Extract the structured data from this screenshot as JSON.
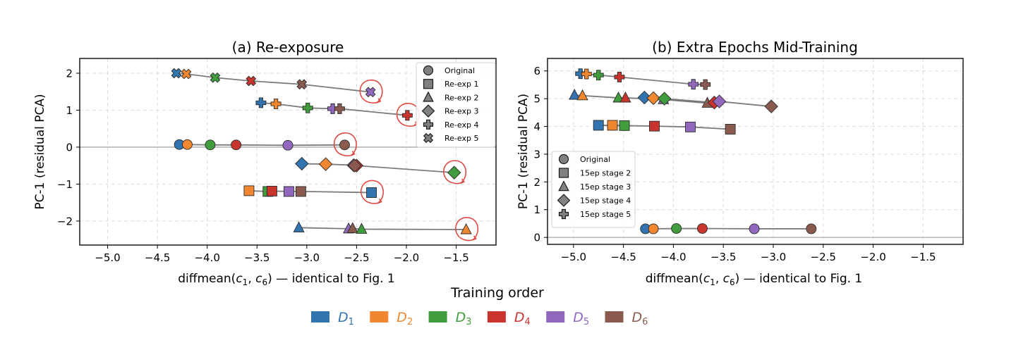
{
  "chart_data": [
    {
      "type": "scatter",
      "title": "(a) Re-exposure",
      "xlabel": "diffmean(c1, c6) — identical to Fig. 1",
      "xlabel_parts": {
        "pre": "diffmean(",
        "c": "c",
        "s1": "1",
        "mid": ", ",
        "s2": "6",
        "post": ") — identical to Fig. 1"
      },
      "ylabel": "PC-1 (residual PCA)",
      "xlim": [
        -5.28,
        -1.1
      ],
      "ylim": [
        -2.65,
        2.4
      ],
      "xticks": [
        -5.0,
        -4.5,
        -4.0,
        -3.5,
        -3.0,
        -2.5,
        -2.0,
        -1.5
      ],
      "xtick_labels": [
        "−5.0",
        "−4.5",
        "−4.0",
        "−3.5",
        "−3.0",
        "−2.5",
        "−2.0",
        "−1.5"
      ],
      "yticks": [
        -2,
        -1,
        0,
        1,
        2
      ],
      "ytick_labels": [
        "−2",
        "−1",
        "0",
        "1",
        "2"
      ],
      "grid": true,
      "zero_line": true,
      "legend_placement": "top-right",
      "legend": [
        {
          "marker": "circle",
          "label": "Original"
        },
        {
          "marker": "square",
          "label": "Re-exp 1"
        },
        {
          "marker": "triangle",
          "label": "Re-exp 2"
        },
        {
          "marker": "diamond",
          "label": "Re-exp 3"
        },
        {
          "marker": "plus",
          "label": "Re-exp 4"
        },
        {
          "marker": "x",
          "label": "Re-exp 5"
        }
      ],
      "series": [
        {
          "name": "Original",
          "marker": "circle",
          "points": [
            {
              "d": "D1",
              "x": -4.28,
              "y": 0.07
            },
            {
              "d": "D2",
              "x": -4.2,
              "y": 0.07
            },
            {
              "d": "D3",
              "x": -3.97,
              "y": 0.06
            },
            {
              "d": "D4",
              "x": -3.71,
              "y": 0.06
            },
            {
              "d": "D5",
              "x": -3.19,
              "y": 0.05
            },
            {
              "d": "D6",
              "x": -2.62,
              "y": 0.06
            }
          ],
          "highlighted": "D6"
        },
        {
          "name": "Re-exp 1",
          "marker": "square",
          "points": [
            {
              "d": "D2",
              "x": -3.58,
              "y": -1.18
            },
            {
              "d": "D3",
              "x": -3.39,
              "y": -1.2
            },
            {
              "d": "D4",
              "x": -3.35,
              "y": -1.19
            },
            {
              "d": "D5",
              "x": -3.18,
              "y": -1.2
            },
            {
              "d": "D6",
              "x": -3.06,
              "y": -1.2
            },
            {
              "d": "D1",
              "x": -2.35,
              "y": -1.23
            }
          ],
          "highlighted": "D1"
        },
        {
          "name": "Re-exp 2",
          "marker": "triangle",
          "points": [
            {
              "d": "D1",
              "x": -3.08,
              "y": -2.18
            },
            {
              "d": "D5",
              "x": -2.58,
              "y": -2.21
            },
            {
              "d": "D6",
              "x": -2.54,
              "y": -2.2
            },
            {
              "d": "D3",
              "x": -2.45,
              "y": -2.22
            },
            {
              "d": "D2",
              "x": -1.4,
              "y": -2.23
            }
          ],
          "highlighted": "D2"
        },
        {
          "name": "Re-exp 3",
          "marker": "diamond",
          "points": [
            {
              "d": "D1",
              "x": -3.05,
              "y": -0.45
            },
            {
              "d": "D2",
              "x": -2.81,
              "y": -0.46
            },
            {
              "d": "D5",
              "x": -2.53,
              "y": -0.49
            },
            {
              "d": "D4",
              "x": -2.5,
              "y": -0.5
            },
            {
              "d": "D6",
              "x": -2.52,
              "y": -0.5
            },
            {
              "d": "D3",
              "x": -1.52,
              "y": -0.69
            }
          ],
          "highlighted": "D3"
        },
        {
          "name": "Re-exp 4",
          "marker": "plus",
          "points": [
            {
              "d": "D1",
              "x": -3.46,
              "y": 1.2
            },
            {
              "d": "D2",
              "x": -3.31,
              "y": 1.17
            },
            {
              "d": "D3",
              "x": -2.99,
              "y": 1.06
            },
            {
              "d": "D5",
              "x": -2.74,
              "y": 1.04
            },
            {
              "d": "D6",
              "x": -2.67,
              "y": 1.04
            },
            {
              "d": "D4",
              "x": -1.99,
              "y": 0.86
            }
          ],
          "highlighted": "D4"
        },
        {
          "name": "Re-exp 5",
          "marker": "x",
          "points": [
            {
              "d": "D1",
              "x": -4.31,
              "y": 2.0
            },
            {
              "d": "D2",
              "x": -4.21,
              "y": 1.98
            },
            {
              "d": "D3",
              "x": -3.92,
              "y": 1.88
            },
            {
              "d": "D4",
              "x": -3.56,
              "y": 1.79
            },
            {
              "d": "D6",
              "x": -3.05,
              "y": 1.7
            },
            {
              "d": "D5",
              "x": -2.36,
              "y": 1.49
            }
          ],
          "highlighted": "D5"
        }
      ]
    },
    {
      "type": "scatter",
      "title": "(b) Extra Epochs Mid-Training",
      "xlabel": "diffmean(c1, c6) — identical to Fig. 1",
      "xlabel_parts": {
        "pre": "diffmean(",
        "c": "c",
        "s1": "1",
        "mid": ", ",
        "s2": "6",
        "post": ") — identical to Fig. 1"
      },
      "ylabel": "PC-1 (residual PCA)",
      "xlim": [
        -5.26,
        -1.1
      ],
      "ylim": [
        -0.25,
        6.45
      ],
      "xticks": [
        -5.0,
        -4.5,
        -4.0,
        -3.5,
        -3.0,
        -2.5,
        -2.0,
        -1.5
      ],
      "xtick_labels": [
        "−5.0",
        "−4.5",
        "−4.0",
        "−3.5",
        "−3.0",
        "−2.5",
        "−2.0",
        "−1.5"
      ],
      "yticks": [
        0,
        1,
        2,
        3,
        4,
        5,
        6
      ],
      "ytick_labels": [
        "0",
        "1",
        "2",
        "3",
        "4",
        "5",
        "6"
      ],
      "grid": true,
      "zero_line": true,
      "legend_placement": "center-left",
      "legend": [
        {
          "marker": "circle",
          "label": "Original"
        },
        {
          "marker": "square",
          "label": "15ep stage 2"
        },
        {
          "marker": "triangle",
          "label": "15ep stage 3"
        },
        {
          "marker": "diamond",
          "label": "15ep stage 4"
        },
        {
          "marker": "plus",
          "label": "15ep stage 5"
        }
      ],
      "series": [
        {
          "name": "Original",
          "marker": "circle",
          "points": [
            {
              "d": "D1",
              "x": -4.28,
              "y": 0.31
            },
            {
              "d": "D2",
              "x": -4.2,
              "y": 0.31
            },
            {
              "d": "D3",
              "x": -3.97,
              "y": 0.32
            },
            {
              "d": "D4",
              "x": -3.71,
              "y": 0.32
            },
            {
              "d": "D5",
              "x": -3.19,
              "y": 0.31
            },
            {
              "d": "D6",
              "x": -2.62,
              "y": 0.31
            }
          ]
        },
        {
          "name": "15ep stage 2",
          "marker": "square",
          "points": [
            {
              "d": "D1",
              "x": -4.75,
              "y": 4.04
            },
            {
              "d": "D2",
              "x": -4.61,
              "y": 4.04
            },
            {
              "d": "D3",
              "x": -4.49,
              "y": 4.03
            },
            {
              "d": "D4",
              "x": -4.19,
              "y": 4.01
            },
            {
              "d": "D5",
              "x": -3.83,
              "y": 3.98
            },
            {
              "d": "D6",
              "x": -3.43,
              "y": 3.9
            }
          ]
        },
        {
          "name": "15ep stage 3",
          "marker": "triangle",
          "points": [
            {
              "d": "D1",
              "x": -4.99,
              "y": 5.13
            },
            {
              "d": "D2",
              "x": -4.91,
              "y": 5.11
            },
            {
              "d": "D3",
              "x": -4.55,
              "y": 5.03
            },
            {
              "d": "D4",
              "x": -4.48,
              "y": 5.03
            },
            {
              "d": "D5",
              "x": -4.1,
              "y": 4.97
            },
            {
              "d": "D6",
              "x": -3.66,
              "y": 4.84
            }
          ]
        },
        {
          "name": "15ep stage 4",
          "marker": "diamond",
          "points": [
            {
              "d": "D1",
              "x": -4.29,
              "y": 5.04
            },
            {
              "d": "D2",
              "x": -4.2,
              "y": 5.02
            },
            {
              "d": "D3",
              "x": -4.09,
              "y": 5.0
            },
            {
              "d": "D4",
              "x": -3.59,
              "y": 4.86
            },
            {
              "d": "D5",
              "x": -3.54,
              "y": 4.9
            },
            {
              "d": "D6",
              "x": -3.02,
              "y": 4.72
            }
          ]
        },
        {
          "name": "15ep stage 5",
          "marker": "plus",
          "points": [
            {
              "d": "D1",
              "x": -4.93,
              "y": 5.9
            },
            {
              "d": "D2",
              "x": -4.87,
              "y": 5.89
            },
            {
              "d": "D3",
              "x": -4.75,
              "y": 5.85
            },
            {
              "d": "D4",
              "x": -4.54,
              "y": 5.78
            },
            {
              "d": "D5",
              "x": -3.8,
              "y": 5.52
            },
            {
              "d": "D6",
              "x": -3.68,
              "y": 5.51
            }
          ]
        }
      ]
    }
  ],
  "colors": {
    "D1": "#3274b0",
    "D2": "#f0862f",
    "D3": "#419c3d",
    "D4": "#c9342f",
    "D5": "#9168be",
    "D6": "#8a5a4f",
    "highlight_circle": "#e04a44",
    "line": "#6e6e6e",
    "legend_marker": "#808080"
  },
  "bottom_legend": {
    "title": "Training order",
    "items": [
      {
        "key": "D1",
        "base": "D",
        "sub": "1"
      },
      {
        "key": "D2",
        "base": "D",
        "sub": "2"
      },
      {
        "key": "D3",
        "base": "D",
        "sub": "3"
      },
      {
        "key": "D4",
        "base": "D",
        "sub": "4"
      },
      {
        "key": "D5",
        "base": "D",
        "sub": "5"
      },
      {
        "key": "D6",
        "base": "D",
        "sub": "6"
      }
    ]
  }
}
